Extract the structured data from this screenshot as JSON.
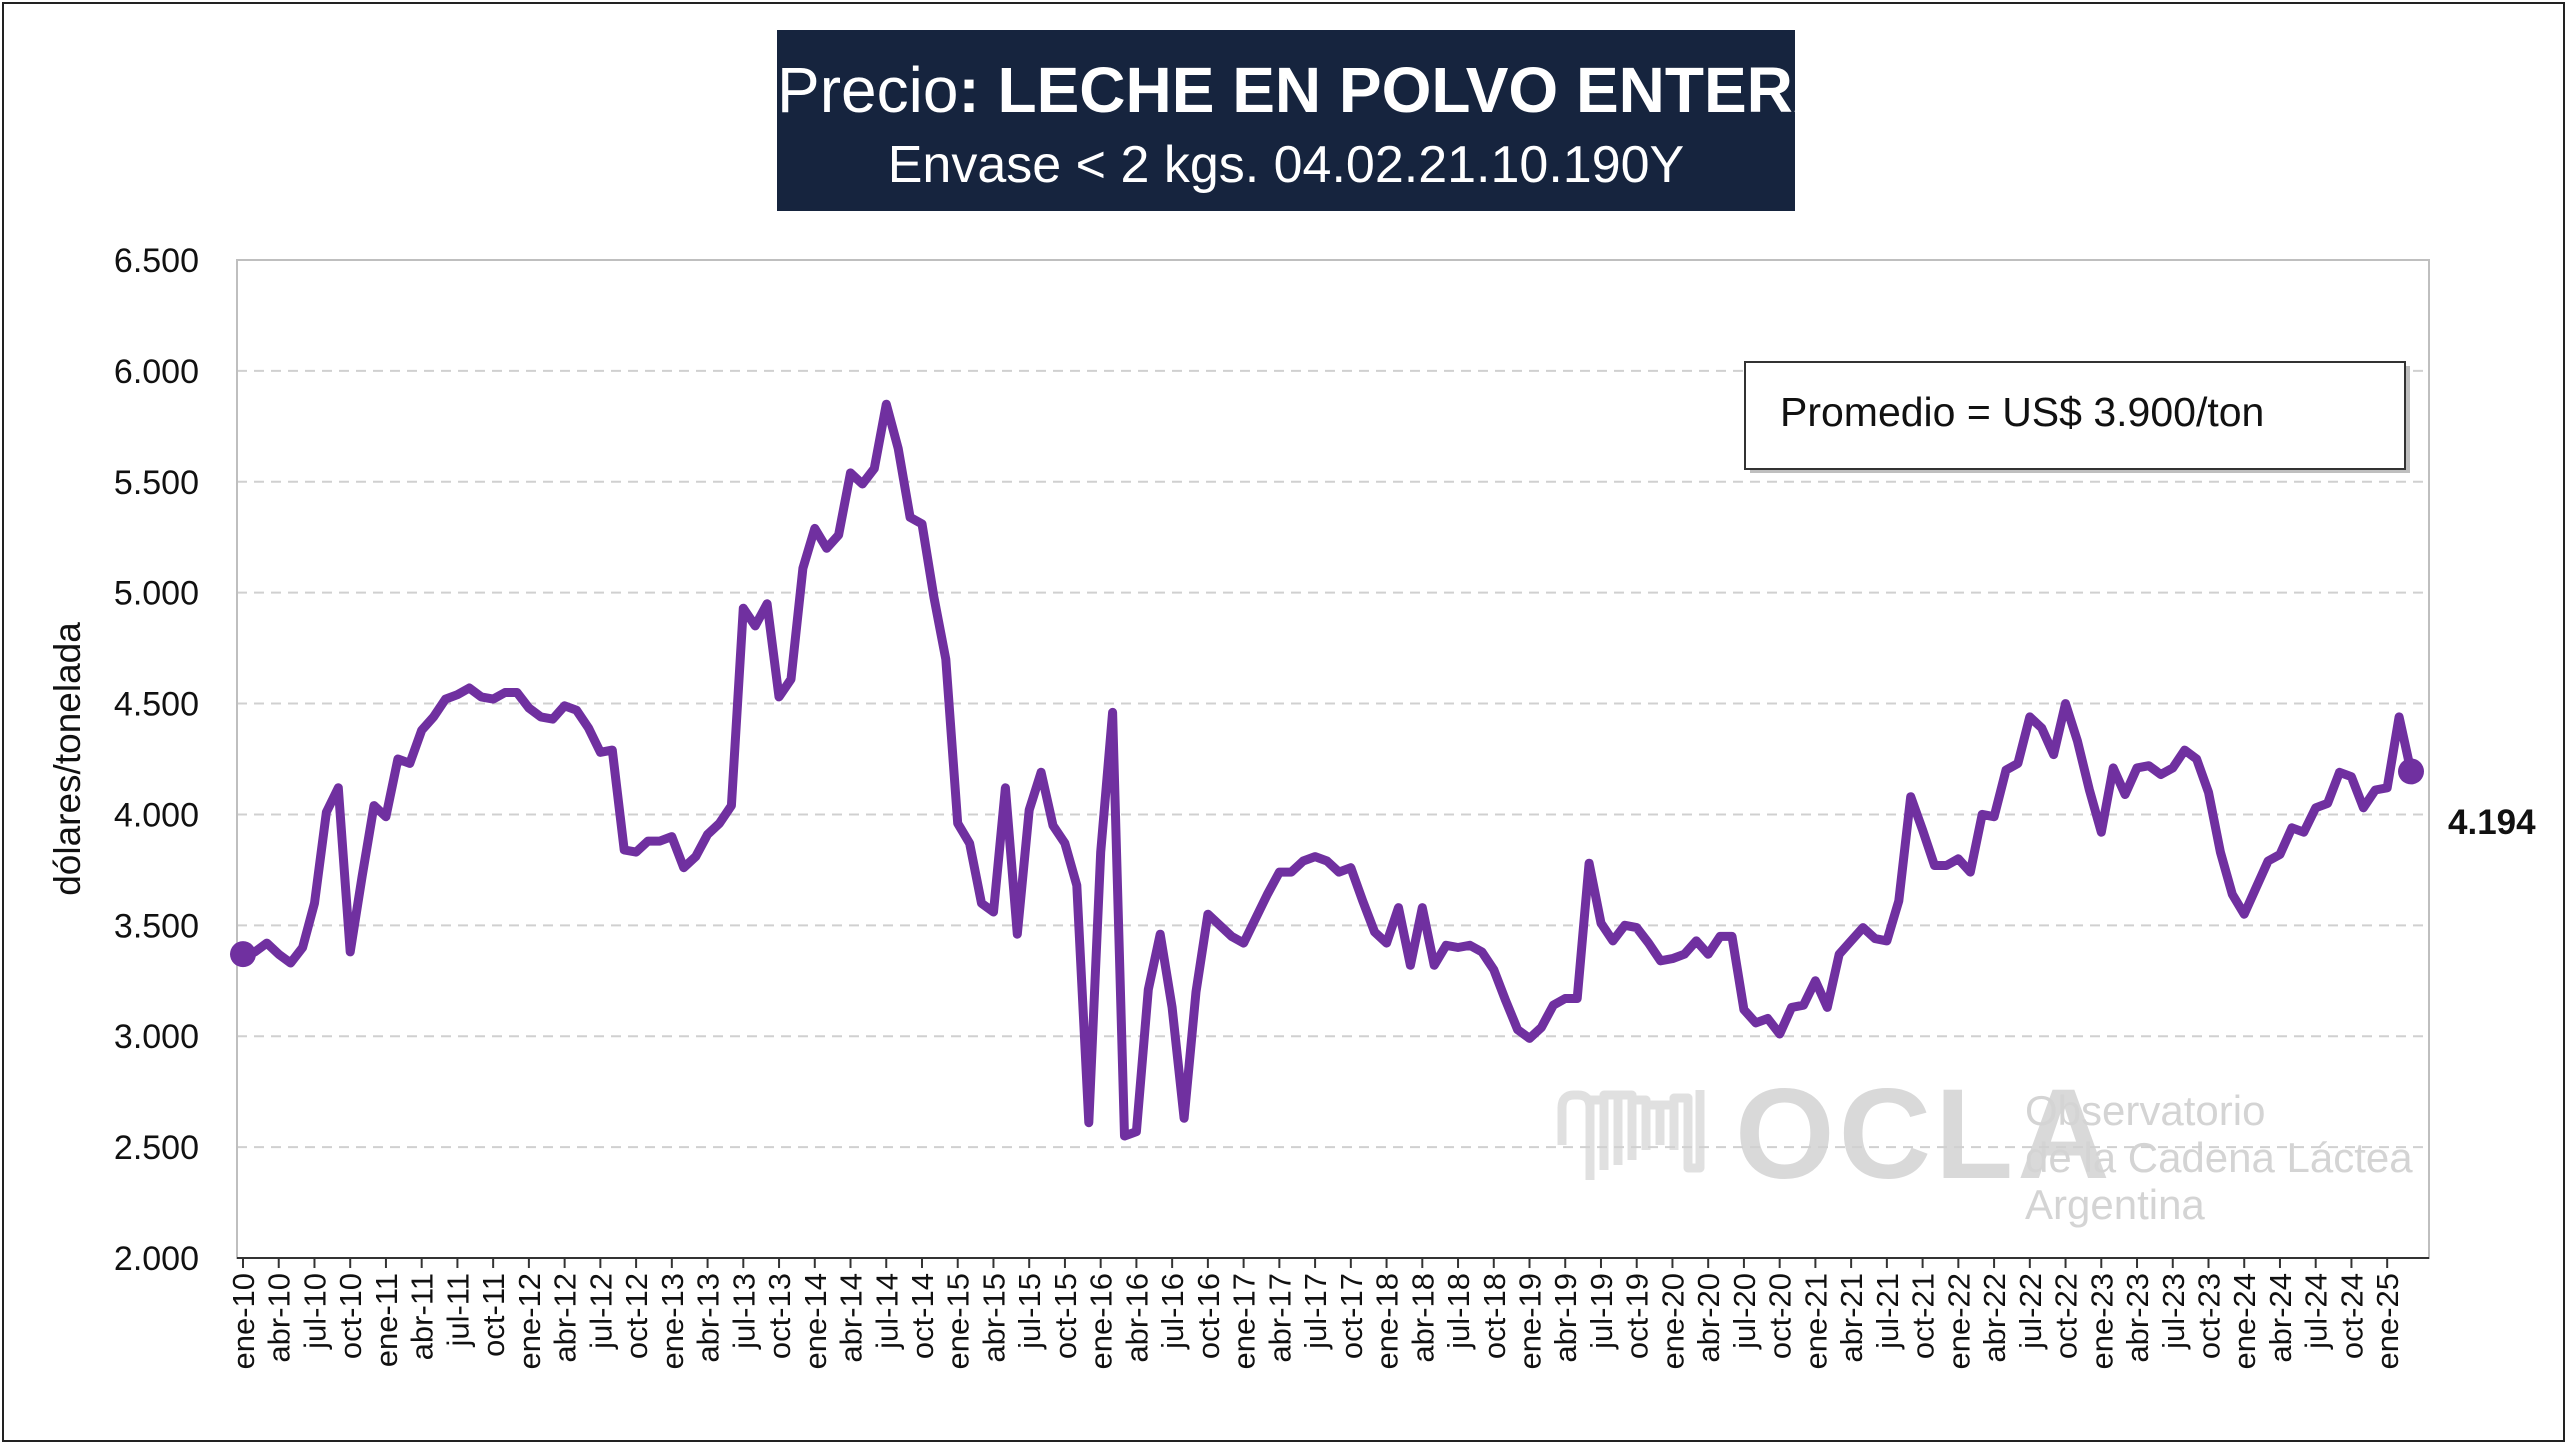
{
  "title": {
    "prefix": "Precio",
    "bold": ": LECHE EN POLVO ENTERA",
    "subtitle": "Envase < 2 kgs. 04.02.21.10.190Y"
  },
  "watermark": {
    "logo": "OCLA",
    "line1": "Observatorio",
    "line2": "de la Cadena Láctea",
    "line3": "Argentina"
  },
  "colors": {
    "series": "#7030a0",
    "title_bg": "#16243e",
    "grid": "#d0d0d0"
  },
  "chart_data": {
    "type": "line",
    "title": "Precio: LECHE EN POLVO ENTERA",
    "subtitle": "Envase < 2 kgs. 04.02.21.10.190Y",
    "xlabel": "",
    "ylabel": "dólares/tonelada",
    "ylim": [
      2000,
      6500
    ],
    "yticks": [
      2000,
      2500,
      3000,
      3500,
      4000,
      4500,
      5000,
      5500,
      6000,
      6500
    ],
    "ytick_labels": [
      "2.000",
      "2.500",
      "3.000",
      "3.500",
      "4.000",
      "4.500",
      "5.000",
      "5.500",
      "6.000",
      "6.500"
    ],
    "grid": true,
    "annotation": "Promedio = US$ 3.900/ton",
    "last_value_label": "4.194",
    "x_tick_labels": [
      "ene-10",
      "abr-10",
      "jul-10",
      "oct-10",
      "ene-11",
      "abr-11",
      "jul-11",
      "oct-11",
      "ene-12",
      "abr-12",
      "jul-12",
      "oct-12",
      "ene-13",
      "abr-13",
      "jul-13",
      "oct-13",
      "ene-14",
      "abr-14",
      "jul-14",
      "oct-14",
      "ene-15",
      "abr-15",
      "jul-15",
      "oct-15",
      "ene-16",
      "abr-16",
      "jul-16",
      "oct-16",
      "ene-17",
      "abr-17",
      "jul-17",
      "oct-17",
      "ene-18",
      "abr-18",
      "jul-18",
      "oct-18",
      "ene-19",
      "abr-19",
      "jul-19",
      "oct-19",
      "ene-20",
      "abr-20",
      "jul-20",
      "oct-20",
      "ene-21",
      "abr-21",
      "jul-21",
      "oct-21",
      "ene-22",
      "abr-22",
      "jul-22",
      "oct-22",
      "ene-23",
      "abr-23",
      "jul-23",
      "oct-23",
      "ene-24",
      "abr-24",
      "jul-24",
      "oct-24",
      "ene-25"
    ],
    "series": [
      {
        "start": "ene-10",
        "frequency": "monthly",
        "values": [
          3370,
          3380,
          3420,
          3370,
          3330,
          3400,
          3600,
          4010,
          4120,
          3380,
          3720,
          4040,
          3990,
          4250,
          4230,
          4380,
          4440,
          4520,
          4540,
          4570,
          4530,
          4520,
          4550,
          4550,
          4480,
          4440,
          4430,
          4490,
          4470,
          4390,
          4280,
          4290,
          3840,
          3830,
          3880,
          3880,
          3900,
          3760,
          3810,
          3910,
          3960,
          4040,
          4930,
          4850,
          4950,
          4530,
          4610,
          5110,
          5290,
          5200,
          5260,
          5540,
          5490,
          5560,
          5850,
          5650,
          5340,
          5310,
          4980,
          4700,
          3960,
          3870,
          3600,
          3560,
          4120,
          3460,
          4020,
          4190,
          3950,
          3870,
          3680,
          2610,
          3830,
          4460,
          2550,
          2570,
          3210,
          3460,
          3130,
          2630,
          3200,
          3550,
          3500,
          3450,
          3420,
          3530,
          3640,
          3740,
          3740,
          3790,
          3810,
          3790,
          3740,
          3760,
          3610,
          3470,
          3420,
          3580,
          3320,
          3580,
          3320,
          3410,
          3400,
          3410,
          3380,
          3300,
          3160,
          3030,
          2990,
          3040,
          3140,
          3170,
          3170,
          3780,
          3510,
          3430,
          3500,
          3490,
          3420,
          3340,
          3350,
          3370,
          3430,
          3370,
          3450,
          3450,
          3120,
          3060,
          3080,
          3010,
          3130,
          3140,
          3250,
          3130,
          3370,
          3430,
          3490,
          3440,
          3430,
          3610,
          4080,
          3930,
          3770,
          3770,
          3800,
          3740,
          4000,
          3990,
          4200,
          4230,
          4440,
          4390,
          4270,
          4500,
          4330,
          4110,
          3920,
          4210,
          4090,
          4210,
          4220,
          4180,
          4210,
          4290,
          4250,
          4100,
          3830,
          3640,
          3550,
          3670,
          3790,
          3820,
          3940,
          3920,
          4030,
          4050,
          4190,
          4170,
          4030,
          4110,
          4120,
          4440,
          4194
        ]
      }
    ]
  }
}
